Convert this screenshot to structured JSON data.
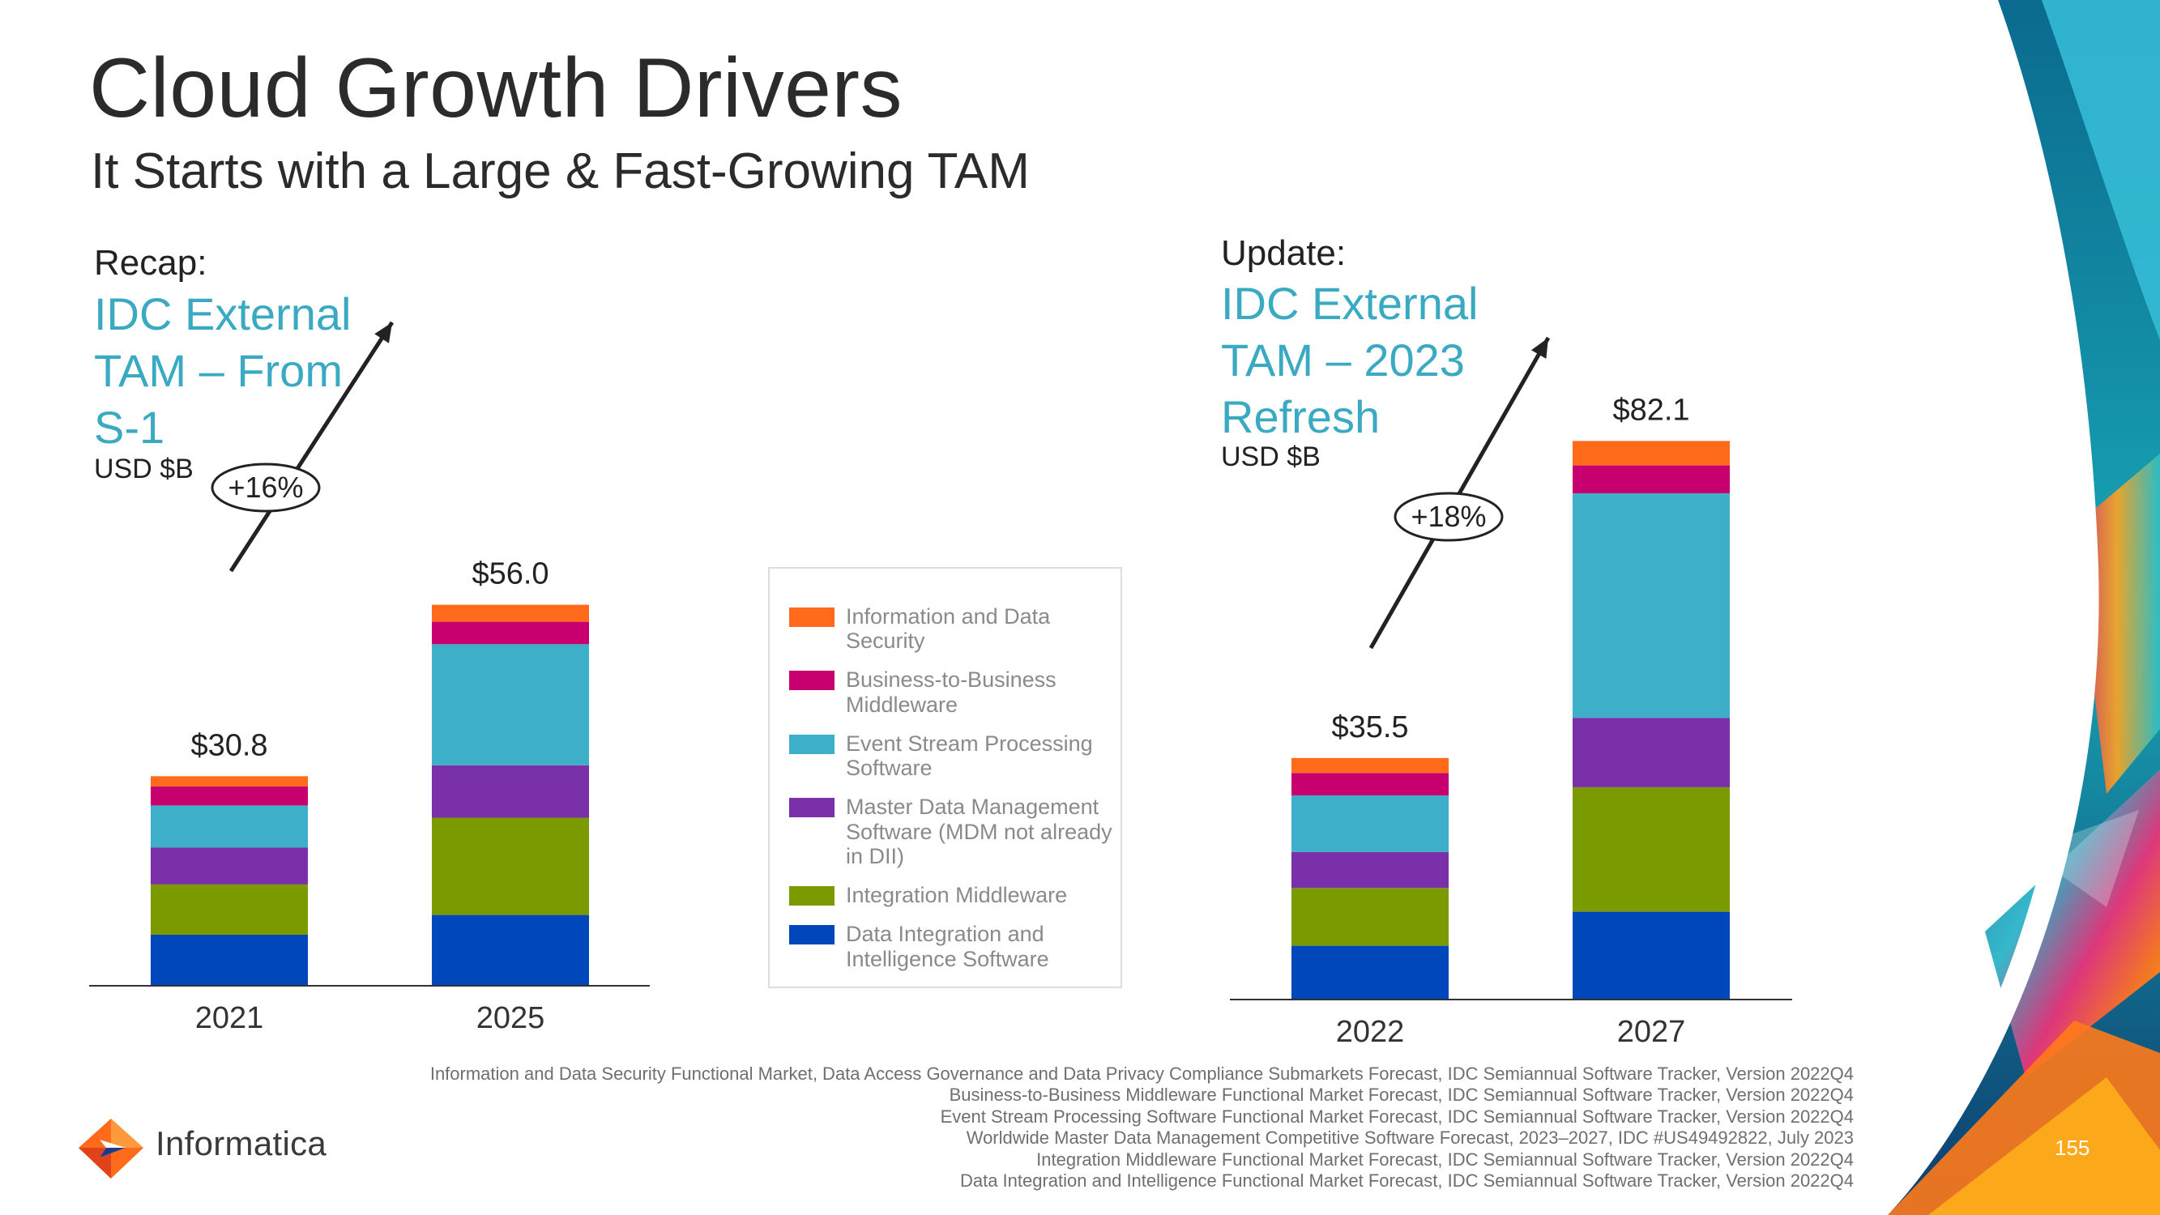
{
  "slide": {
    "title": "Cloud Growth Drivers",
    "subtitle": "It Starts with a Large & Fast-Growing TAM",
    "page_number": "155"
  },
  "left_panel": {
    "label": "Recap:",
    "title": "IDC External TAM – From S-1",
    "unit": "USD $B"
  },
  "right_panel": {
    "label": "Update:",
    "title": "IDC External TAM – 2023 Refresh",
    "unit": "USD $B"
  },
  "legend": {
    "items": [
      {
        "label": "Information and Data Security",
        "color": "#ff6b1a"
      },
      {
        "label": "Business-to-Business Middleware",
        "color": "#c8006f"
      },
      {
        "label": "Event Stream Processing Software",
        "color": "#3eafc9"
      },
      {
        "label": "Master Data Management Software (MDM not already in DII)",
        "color": "#7a30a8"
      },
      {
        "label": "Integration Middleware",
        "color": "#7a9a00"
      },
      {
        "label": "Data Integration and Intelligence Software",
        "color": "#0047bb"
      }
    ]
  },
  "chart_data": [
    {
      "type": "bar",
      "stacked": true,
      "title": "IDC External TAM – From S-1",
      "ylabel": "USD $B",
      "categories": [
        "2021",
        "2025"
      ],
      "totals": [
        30.8,
        56.0
      ],
      "total_labels": [
        "$30.8",
        "$56.0"
      ],
      "growth_label": "+16%",
      "series": [
        {
          "name": "Data Integration and Intelligence Software",
          "values": [
            7.5,
            10.4
          ]
        },
        {
          "name": "Integration Middleware",
          "values": [
            7.4,
            14.3
          ]
        },
        {
          "name": "Master Data Management Software (MDM not already in DII)",
          "values": [
            5.4,
            7.7
          ]
        },
        {
          "name": "Event Stream Processing Software",
          "values": [
            6.2,
            17.8
          ]
        },
        {
          "name": "Business-to-Business Middleware",
          "values": [
            2.8,
            3.3
          ]
        },
        {
          "name": "Information and Data Security",
          "values": [
            1.5,
            2.5
          ]
        }
      ]
    },
    {
      "type": "bar",
      "stacked": true,
      "title": "IDC External TAM – 2023 Refresh",
      "ylabel": "USD $B",
      "categories": [
        "2022",
        "2027"
      ],
      "totals": [
        35.5,
        82.1
      ],
      "total_labels": [
        "$35.5",
        "$82.1"
      ],
      "growth_label": "+18%",
      "series": [
        {
          "name": "Data Integration and Intelligence Software",
          "values": [
            7.9,
            12.9
          ]
        },
        {
          "name": "Integration Middleware",
          "values": [
            8.5,
            18.3
          ]
        },
        {
          "name": "Master Data Management Software (MDM not already in DII)",
          "values": [
            5.3,
            10.2
          ]
        },
        {
          "name": "Event Stream Processing Software",
          "values": [
            8.3,
            33.0
          ]
        },
        {
          "name": "Business-to-Business Middleware",
          "values": [
            3.3,
            4.1
          ]
        },
        {
          "name": "Information and Data Security",
          "values": [
            2.2,
            3.6
          ]
        }
      ]
    }
  ],
  "footnotes": [
    "Information and Data Security Functional Market, Data Access Governance and Data Privacy Compliance Submarkets Forecast, IDC Semiannual Software Tracker, Version 2022Q4",
    "Business-to-Business Middleware Functional Market Forecast, IDC Semiannual Software Tracker, Version 2022Q4",
    "Event Stream Processing Software Functional Market Forecast, IDC Semiannual Software Tracker, Version 2022Q4",
    "Worldwide Master Data Management Competitive Software Forecast, 2023–2027, IDC #US49492822, July 2023",
    "Integration Middleware Functional Market Forecast, IDC Semiannual Software Tracker, Version 2022Q4",
    "Data Integration and Intelligence Functional Market Forecast, IDC Semiannual Software Tracker, Version 2022Q4"
  ],
  "brand": {
    "name": "Informatica",
    "accent": "#ff6b1a"
  }
}
